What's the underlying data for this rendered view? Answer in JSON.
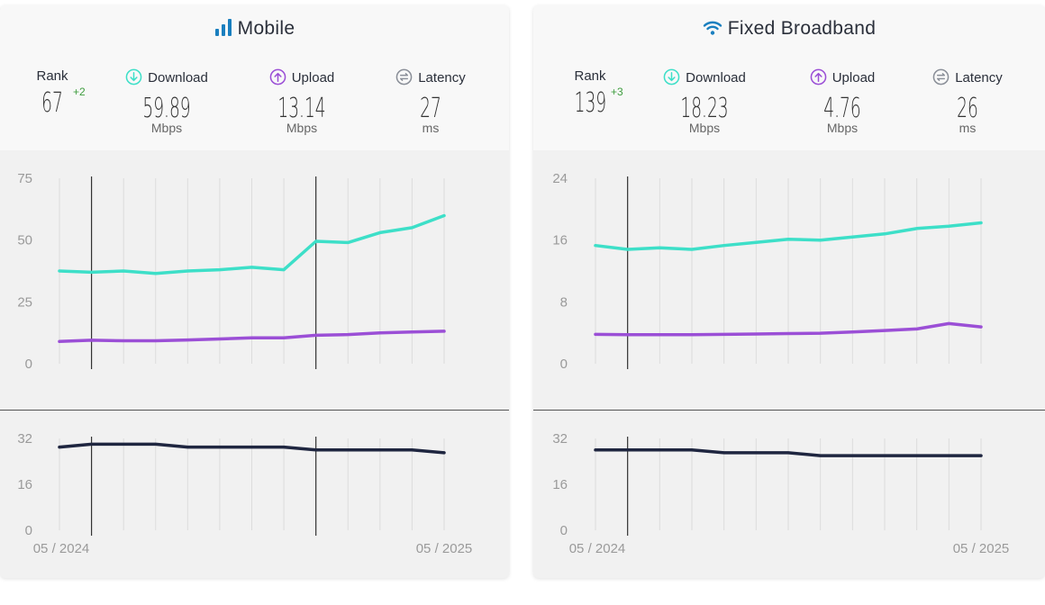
{
  "mobile": {
    "title": "Mobile",
    "rank_label": "Rank",
    "rank": "67",
    "rank_delta": "+2",
    "download_label": "Download",
    "download": "59.89",
    "download_unit": "Mbps",
    "upload_label": "Upload",
    "upload": "13.14",
    "upload_unit": "Mbps",
    "latency_label": "Latency",
    "latency": "27",
    "latency_unit": "ms"
  },
  "fixed": {
    "title": "Fixed Broadband",
    "rank_label": "Rank",
    "rank": "139",
    "rank_delta": "+3",
    "download_label": "Download",
    "download": "18.23",
    "download_unit": "Mbps",
    "upload_label": "Upload",
    "upload": "4.76",
    "upload_unit": "Mbps",
    "latency_label": "Latency",
    "latency": "26",
    "latency_unit": "ms"
  },
  "colors": {
    "download": "#3ddfc8",
    "upload": "#9b4fd6",
    "latency": "#1f2640",
    "icon_blue": "#1a7fbf"
  },
  "chart_data": [
    {
      "type": "line",
      "panel": "mobile",
      "chart": "speed",
      "x_start_label": "05 / 2024",
      "x_end_label": "05 / 2025",
      "ylim": [
        0,
        75
      ],
      "yticks": [
        0,
        25,
        50,
        75
      ],
      "marker_indexes": [
        1,
        8
      ],
      "series": [
        {
          "key": "download",
          "values": [
            37.5,
            37.0,
            37.5,
            36.5,
            37.5,
            38.0,
            39.0,
            38.0,
            49.5,
            49.0,
            53.0,
            55.0,
            59.89
          ]
        },
        {
          "key": "upload",
          "values": [
            9.0,
            9.5,
            9.3,
            9.3,
            9.6,
            10.0,
            10.5,
            10.5,
            11.5,
            11.8,
            12.5,
            12.8,
            13.14
          ]
        }
      ]
    },
    {
      "type": "line",
      "panel": "mobile",
      "chart": "latency",
      "ylim": [
        0,
        32
      ],
      "yticks": [
        0,
        16,
        32
      ],
      "marker_indexes": [
        1,
        8
      ],
      "series": [
        {
          "key": "latency",
          "values": [
            29,
            30,
            30,
            30,
            29,
            29,
            29,
            29,
            28,
            28,
            28,
            28,
            27
          ]
        }
      ]
    },
    {
      "type": "line",
      "panel": "fixed",
      "chart": "speed",
      "x_start_label": "05 / 2024",
      "x_end_label": "05 / 2025",
      "ylim": [
        0,
        24
      ],
      "yticks": [
        0,
        8,
        16,
        24
      ],
      "marker_indexes": [
        1
      ],
      "series": [
        {
          "key": "download",
          "values": [
            15.3,
            14.8,
            15.0,
            14.8,
            15.3,
            15.7,
            16.1,
            16.0,
            16.4,
            16.8,
            17.5,
            17.8,
            18.23
          ]
        },
        {
          "key": "upload",
          "values": [
            3.8,
            3.75,
            3.75,
            3.75,
            3.8,
            3.85,
            3.9,
            3.95,
            4.1,
            4.3,
            4.5,
            5.2,
            4.76
          ]
        }
      ]
    },
    {
      "type": "line",
      "panel": "fixed",
      "chart": "latency",
      "ylim": [
        0,
        32
      ],
      "yticks": [
        0,
        16,
        32
      ],
      "marker_indexes": [
        1
      ],
      "series": [
        {
          "key": "latency",
          "values": [
            28,
            28,
            28,
            28,
            27,
            27,
            27,
            26,
            26,
            26,
            26,
            26,
            26
          ]
        }
      ]
    }
  ]
}
